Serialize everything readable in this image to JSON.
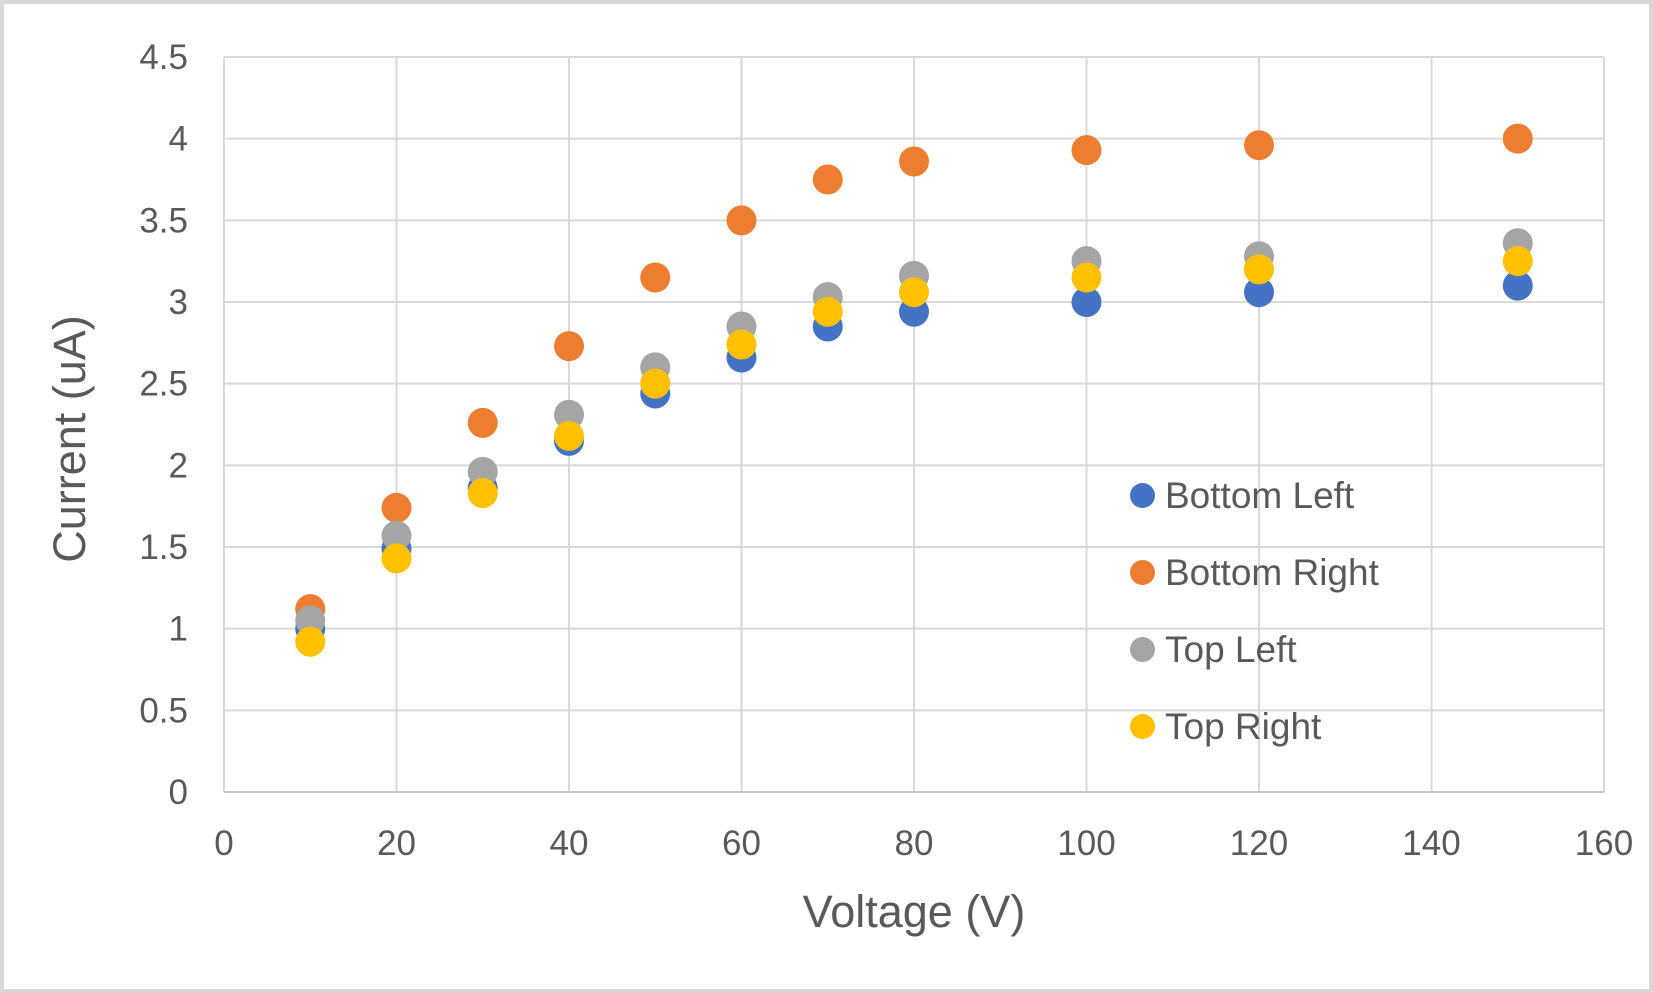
{
  "chart_data": {
    "type": "scatter",
    "title": "",
    "xlabel": "Voltage (V)",
    "ylabel": "Current (uA)",
    "xlim": [
      0,
      160
    ],
    "ylim": [
      0,
      4.5
    ],
    "x_ticks": [
      0,
      20,
      40,
      60,
      80,
      100,
      120,
      140,
      160
    ],
    "y_ticks": [
      0,
      0.5,
      1,
      1.5,
      2,
      2.5,
      3,
      3.5,
      4,
      4.5
    ],
    "grid": true,
    "legend_position": "inside-right",
    "x": [
      10,
      20,
      30,
      40,
      50,
      60,
      70,
      80,
      100,
      120,
      150
    ],
    "series": [
      {
        "name": "Bottom Left",
        "color": "#4472C4",
        "values": [
          1.0,
          1.49,
          1.86,
          2.15,
          2.44,
          2.66,
          2.85,
          2.94,
          3.0,
          3.06,
          3.1
        ]
      },
      {
        "name": "Bottom Right",
        "color": "#ED7D31",
        "values": [
          1.12,
          1.74,
          2.26,
          2.73,
          3.15,
          3.5,
          3.75,
          3.86,
          3.93,
          3.96,
          4.0
        ]
      },
      {
        "name": "Top Left",
        "color": "#A5A5A5",
        "values": [
          1.05,
          1.57,
          1.96,
          2.31,
          2.6,
          2.85,
          3.03,
          3.16,
          3.25,
          3.28,
          3.36
        ]
      },
      {
        "name": "Top Right",
        "color": "#FFC000",
        "values": [
          0.92,
          1.43,
          1.83,
          2.18,
          2.5,
          2.74,
          2.94,
          3.06,
          3.15,
          3.2,
          3.25
        ]
      }
    ]
  },
  "styles": {
    "text_color": "#595959",
    "grid_color": "#D9D9D9",
    "axis_color": "#C6C6C6",
    "frame_color": "#D8D8D8",
    "background": "#FFFFFF",
    "marker_radius": 15
  }
}
